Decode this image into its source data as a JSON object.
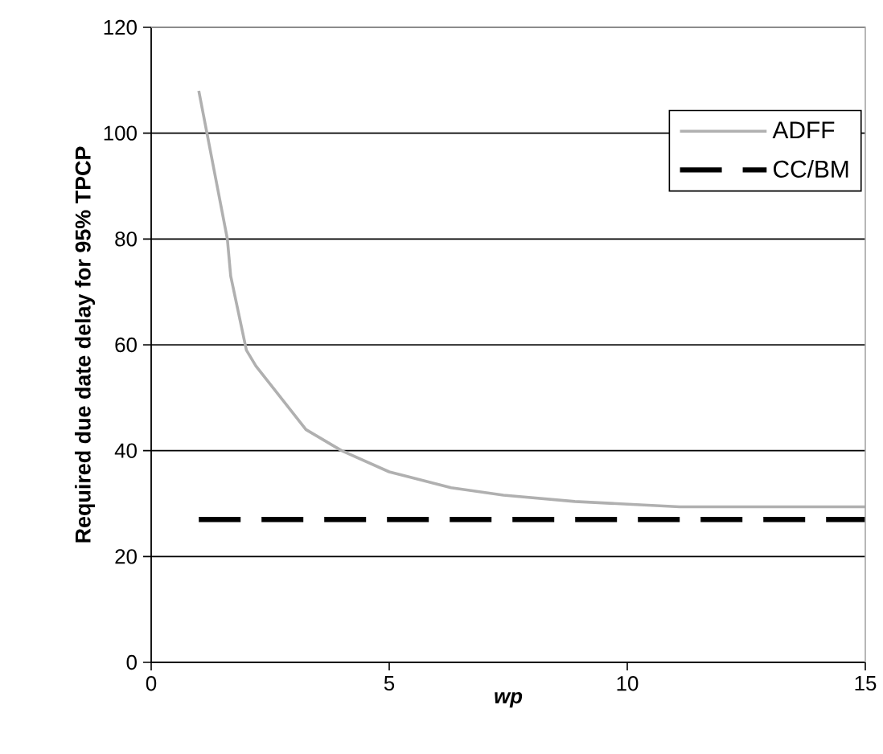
{
  "chart_data": {
    "type": "line",
    "xlabel": "wp",
    "ylabel": "Required due date delay for 95% TPCP",
    "xlim": [
      0,
      15
    ],
    "xticks": [
      0,
      5,
      10,
      15
    ],
    "ylim": [
      0,
      120
    ],
    "yticks": [
      0,
      20,
      40,
      60,
      80,
      100,
      120
    ],
    "grid": "y",
    "legend": "top right",
    "series": [
      {
        "name": "ADFF",
        "color": "#b0b0b0",
        "line_style": "solid",
        "x": [
          1,
          1.6,
          1.67,
          2.0,
          2.2,
          3.25,
          4.0,
          5.0,
          6.3,
          7.4,
          8.9,
          11.1,
          15
        ],
        "values": [
          108,
          80,
          73,
          59,
          56,
          44,
          40,
          36,
          33,
          31.6,
          30.4,
          29.4,
          29.4
        ]
      },
      {
        "name": "CC/BM",
        "color": "#000000",
        "line_style": "dashed",
        "x": [
          1,
          15
        ],
        "values": [
          27,
          27
        ]
      }
    ]
  }
}
